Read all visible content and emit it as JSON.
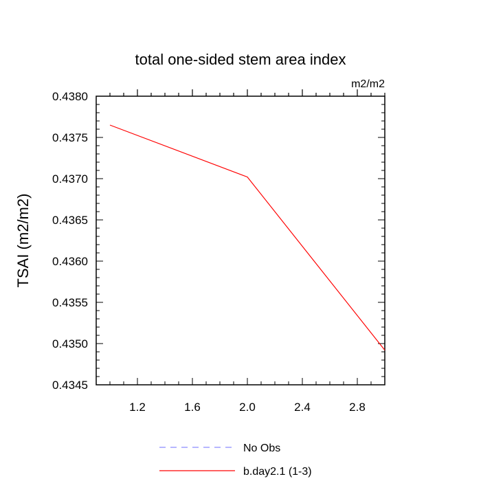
{
  "chart_data": {
    "type": "line",
    "title": "total one-sided stem area index",
    "units_label": "m2/m2",
    "ylabel": "TSAI  (m2/m2)",
    "xlabel": "",
    "xlim": [
      0.9,
      3.0
    ],
    "ylim": [
      0.4345,
      0.438
    ],
    "x_ticks": [
      1.2,
      1.6,
      2.0,
      2.4,
      2.8
    ],
    "x_tick_labels": [
      "1.2",
      "1.6",
      "2.0",
      "2.4",
      "2.8"
    ],
    "y_ticks": [
      0.4345,
      0.435,
      0.4355,
      0.436,
      0.4365,
      0.437,
      0.4375,
      0.438
    ],
    "y_tick_labels": [
      "0.4345",
      "0.4350",
      "0.4355",
      "0.4360",
      "0.4365",
      "0.4370",
      "0.4375",
      "0.4380"
    ],
    "grid": false,
    "series": [
      {
        "name": "b.day2.1 (1-3)",
        "color": "#ff0000",
        "style": "solid",
        "x": [
          1.0,
          2.0,
          3.0
        ],
        "y": [
          0.43765,
          0.43702,
          0.43492
        ]
      }
    ],
    "legend": {
      "placement": "bottom-center",
      "entries": [
        {
          "label": "No Obs",
          "color": "#8a8aff",
          "style": "dashed"
        },
        {
          "label": "b.day2.1 (1-3)",
          "color": "#ff0000",
          "style": "solid"
        }
      ]
    }
  }
}
